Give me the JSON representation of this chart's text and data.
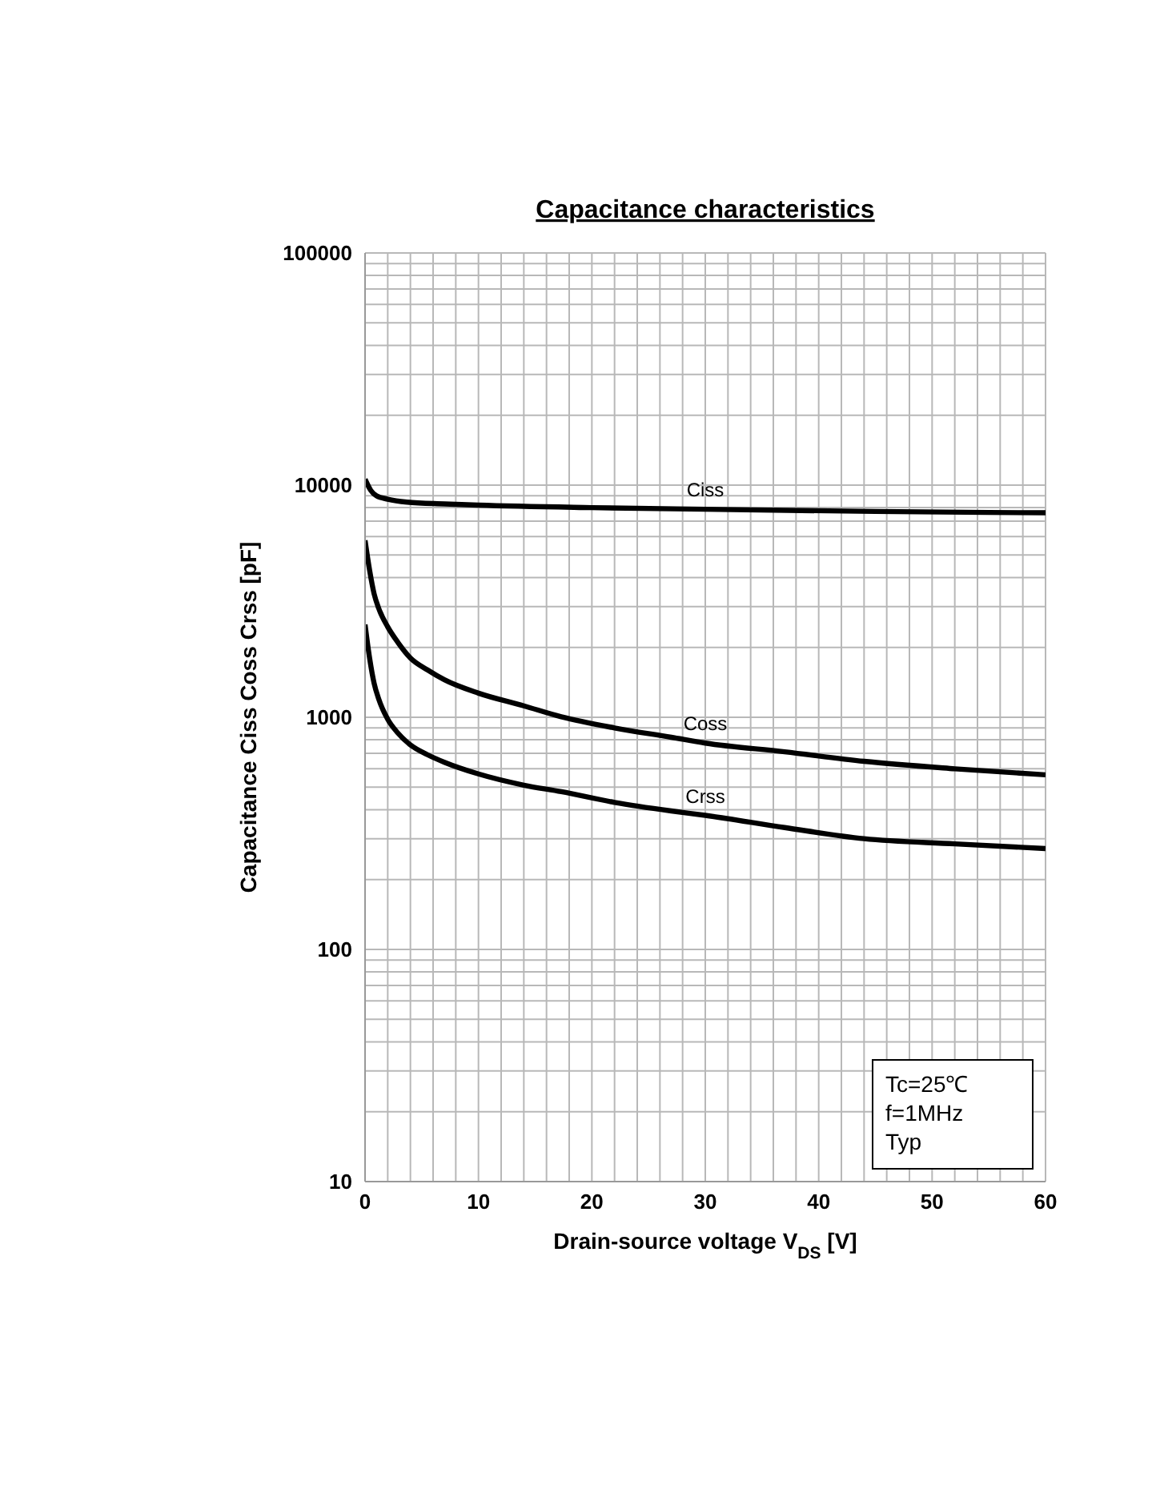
{
  "chart_data": {
    "type": "line",
    "title": "Capacitance characteristics",
    "xlabel": "Drain-source voltage  V$_{DS}$  [V]",
    "ylabel": "Capacitance Ciss Coss Crss  [pF]",
    "log": "y",
    "grid": true,
    "marker": "none",
    "line_style": "solid",
    "xlim": [
      0,
      60
    ],
    "ylim": [
      10,
      100000
    ],
    "xticks": [
      0,
      {
        "value": 2,
        "label": null
      },
      {
        "value": 4,
        "label": null
      },
      {
        "value": 6,
        "label": null
      },
      {
        "value": 8,
        "label": null
      },
      10,
      {
        "value": 12,
        "label": null
      },
      {
        "value": 14,
        "label": null
      },
      {
        "value": 16,
        "label": null
      },
      {
        "value": 18,
        "label": null
      },
      20,
      {
        "value": 22,
        "label": null
      },
      {
        "value": 24,
        "label": null
      },
      {
        "value": 26,
        "label": null
      },
      {
        "value": 28,
        "label": null
      },
      30,
      {
        "value": 32,
        "label": null
      },
      {
        "value": 34,
        "label": null
      },
      {
        "value": 36,
        "label": null
      },
      {
        "value": 38,
        "label": null
      },
      40,
      {
        "value": 42,
        "label": null
      },
      {
        "value": 44,
        "label": null
      },
      {
        "value": 46,
        "label": null
      },
      {
        "value": 48,
        "label": null
      },
      50,
      {
        "value": 52,
        "label": null
      },
      {
        "value": 54,
        "label": null
      },
      {
        "value": 56,
        "label": null
      },
      {
        "value": 58,
        "label": null
      },
      60
    ],
    "yticks": [
      10,
      {
        "value": 20,
        "label": null
      },
      {
        "value": 30,
        "label": null
      },
      {
        "value": 40,
        "label": null
      },
      {
        "value": 50,
        "label": null
      },
      {
        "value": 60,
        "label": null
      },
      {
        "value": 70,
        "label": null
      },
      {
        "value": 80,
        "label": null
      },
      {
        "value": 90,
        "label": null
      },
      100,
      {
        "value": 200,
        "label": null
      },
      {
        "value": 300,
        "label": null
      },
      {
        "value": 400,
        "label": null
      },
      {
        "value": 500,
        "label": null
      },
      {
        "value": 600,
        "label": null
      },
      {
        "value": 700,
        "label": null
      },
      {
        "value": 800,
        "label": null
      },
      {
        "value": 900,
        "label": null
      },
      1000,
      {
        "value": 2000,
        "label": null
      },
      {
        "value": 3000,
        "label": null
      },
      {
        "value": 4000,
        "label": null
      },
      {
        "value": 5000,
        "label": null
      },
      {
        "value": 6000,
        "label": null
      },
      {
        "value": 7000,
        "label": null
      },
      {
        "value": 8000,
        "label": null
      },
      {
        "value": 9000,
        "label": null
      },
      10000,
      {
        "value": 20000,
        "label": null
      },
      {
        "value": 30000,
        "label": null
      },
      {
        "value": 40000,
        "label": null
      },
      {
        "value": 50000,
        "label": null
      },
      {
        "value": 60000,
        "label": null
      },
      {
        "value": 70000,
        "label": null
      },
      {
        "value": 80000,
        "label": null
      },
      {
        "value": 90000,
        "label": null
      },
      100000
    ],
    "series": [
      {
        "name": "Ciss",
        "color": "#000000",
        "x": [
          0,
          0.5,
          1,
          2,
          3.7,
          7,
          10,
          20,
          30,
          45,
          60
        ],
        "values": [
          10600,
          9500,
          9000,
          8700,
          8450,
          8300,
          8200,
          8000,
          7870,
          7700,
          7600
        ]
      },
      {
        "name": "Coss",
        "color": "#000000",
        "x": [
          0,
          0.4,
          0.8,
          1.2,
          2,
          2.9,
          4,
          5.5,
          7,
          10,
          14,
          17.3,
          22,
          27,
          30,
          37,
          44,
          52,
          60
        ],
        "values": [
          5780,
          4300,
          3400,
          2950,
          2450,
          2100,
          1800,
          1600,
          1450,
          1270,
          1120,
          1005,
          900,
          820,
          774,
          710,
          646,
          600,
          565
        ]
      },
      {
        "name": "Crss",
        "color": "#000000",
        "x": [
          0,
          0.4,
          0.8,
          1.2,
          2,
          2.9,
          4,
          5.5,
          7,
          10,
          14,
          17.3,
          22,
          27,
          30,
          37,
          44,
          52,
          60
        ],
        "values": [
          2510,
          1800,
          1400,
          1200,
          980,
          855,
          760,
          690,
          640,
          570,
          510,
          478,
          430,
          395,
          378,
          335,
          300,
          285,
          272
        ]
      }
    ],
    "annotations": [
      "Tc=25℃",
      "f=1MHz",
      "Typ"
    ]
  }
}
